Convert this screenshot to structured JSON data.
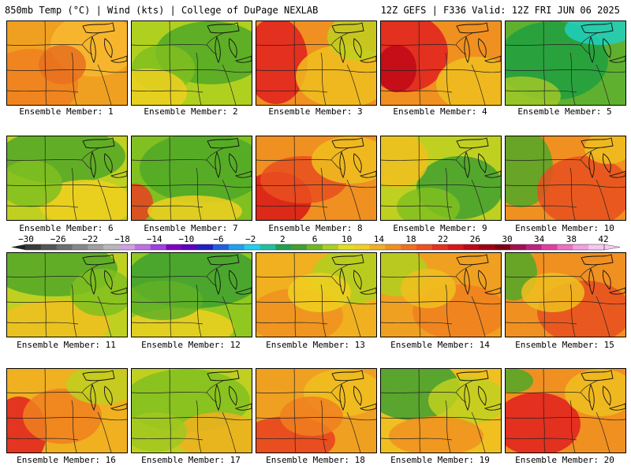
{
  "header": {
    "left": "850mb Temp (°C) | Wind (kts) | College of DuPage NEXLAB",
    "right": "12Z GEFS | F336 Valid: 12Z FRI JUN 06 2025"
  },
  "panels": [
    {
      "label": "Ensemble Member: 1",
      "bg": "#f0a020",
      "blobs": [
        {
          "c": "#f08020"
        },
        {
          "c": "#f8b830"
        },
        {
          "c": "#e87020"
        }
      ]
    },
    {
      "label": "Ensemble Member: 2",
      "bg": "#b0d020",
      "blobs": [
        {
          "c": "#50a828"
        },
        {
          "c": "#80c020"
        },
        {
          "c": "#f0d020"
        }
      ]
    },
    {
      "label": "Ensemble Member: 3",
      "bg": "#f09020",
      "blobs": [
        {
          "c": "#e02020"
        },
        {
          "c": "#f0c020"
        },
        {
          "c": "#c0d020"
        }
      ]
    },
    {
      "label": "Ensemble Member: 4",
      "bg": "#f09020",
      "blobs": [
        {
          "c": "#e02020"
        },
        {
          "c": "#c00818"
        },
        {
          "c": "#f0c020"
        }
      ]
    },
    {
      "label": "Ensemble Member: 5",
      "bg": "#60b030",
      "blobs": [
        {
          "c": "#20a040"
        },
        {
          "c": "#20d0c0"
        },
        {
          "c": "#a0c828"
        }
      ]
    },
    {
      "label": "Ensemble Member: 6",
      "bg": "#c0d020",
      "blobs": [
        {
          "c": "#50a828"
        },
        {
          "c": "#f0d020"
        },
        {
          "c": "#80c020"
        }
      ]
    },
    {
      "label": "Ensemble Member: 7",
      "bg": "#80c020",
      "blobs": [
        {
          "c": "#50a828"
        },
        {
          "c": "#e84020"
        },
        {
          "c": "#f0d020"
        }
      ]
    },
    {
      "label": "Ensemble Member: 8",
      "bg": "#f09020",
      "blobs": [
        {
          "c": "#d81818"
        },
        {
          "c": "#e85020"
        },
        {
          "c": "#f0c020"
        }
      ]
    },
    {
      "label": "Ensemble Member: 9",
      "bg": "#c0d020",
      "blobs": [
        {
          "c": "#40a030"
        },
        {
          "c": "#f0c020"
        },
        {
          "c": "#80c020"
        }
      ]
    },
    {
      "label": "Ensemble Member: 10",
      "bg": "#f09020",
      "blobs": [
        {
          "c": "#50a828"
        },
        {
          "c": "#e85020"
        },
        {
          "c": "#f0c020"
        }
      ]
    },
    {
      "label": "Ensemble Member: 11",
      "bg": "#c0d020",
      "blobs": [
        {
          "c": "#50a828"
        },
        {
          "c": "#f0c020"
        },
        {
          "c": "#80c020"
        }
      ]
    },
    {
      "label": "Ensemble Member: 12",
      "bg": "#90c820",
      "blobs": [
        {
          "c": "#40a030"
        },
        {
          "c": "#f0d020"
        },
        {
          "c": "#60b028"
        }
      ]
    },
    {
      "label": "Ensemble Member: 13",
      "bg": "#f0b020",
      "blobs": [
        {
          "c": "#b0d020"
        },
        {
          "c": "#f09020"
        },
        {
          "c": "#f0d020"
        }
      ]
    },
    {
      "label": "Ensemble Member: 14",
      "bg": "#f0a020",
      "blobs": [
        {
          "c": "#b0d020"
        },
        {
          "c": "#f08020"
        },
        {
          "c": "#f0c020"
        }
      ]
    },
    {
      "label": "Ensemble Member: 15",
      "bg": "#f09020",
      "blobs": [
        {
          "c": "#50a828"
        },
        {
          "c": "#e85020"
        },
        {
          "c": "#f0c020"
        }
      ]
    },
    {
      "label": "Ensemble Member: 16",
      "bg": "#f0b020",
      "blobs": [
        {
          "c": "#e02020"
        },
        {
          "c": "#f08020"
        },
        {
          "c": "#c0d020"
        }
      ]
    },
    {
      "label": "Ensemble Member: 17",
      "bg": "#c0d020",
      "blobs": [
        {
          "c": "#80c020"
        },
        {
          "c": "#f0b020"
        },
        {
          "c": "#a0c820"
        }
      ]
    },
    {
      "label": "Ensemble Member: 18",
      "bg": "#f0a020",
      "blobs": [
        {
          "c": "#e84020"
        },
        {
          "c": "#f0c020"
        },
        {
          "c": "#f08020"
        }
      ]
    },
    {
      "label": "Ensemble Member: 19",
      "bg": "#f0c020",
      "blobs": [
        {
          "c": "#40a030"
        },
        {
          "c": "#c0d020"
        },
        {
          "c": "#f09020"
        }
      ]
    },
    {
      "label": "Ensemble Member: 20",
      "bg": "#f09020",
      "blobs": [
        {
          "c": "#e02020"
        },
        {
          "c": "#50a828"
        },
        {
          "c": "#f0c020"
        }
      ]
    }
  ],
  "colorbar": {
    "ticks": [
      "−30",
      "−26",
      "−22",
      "−18",
      "−14",
      "−10",
      "−6",
      "−2",
      "2",
      "6",
      "10",
      "14",
      "18",
      "22",
      "26",
      "30",
      "34",
      "38",
      "42"
    ],
    "colors": [
      "#3a3a3a",
      "#555555",
      "#6e6e6e",
      "#878787",
      "#a0a0a0",
      "#b8b8b8",
      "#d0a0e0",
      "#c070e0",
      "#a040e0",
      "#8000c0",
      "#5a00c0",
      "#2020c0",
      "#2060e0",
      "#20a0f0",
      "#20d0f0",
      "#20c0a0",
      "#20a050",
      "#40a030",
      "#70b820",
      "#a8d020",
      "#e0e020",
      "#f0d020",
      "#f0b020",
      "#f09020",
      "#f07020",
      "#f05020",
      "#e83020",
      "#d81818",
      "#c00818",
      "#a00010",
      "#800010",
      "#a01050",
      "#c02080",
      "#e040a0",
      "#f070c0",
      "#f0a0e0",
      "#f8c8f0"
    ]
  }
}
